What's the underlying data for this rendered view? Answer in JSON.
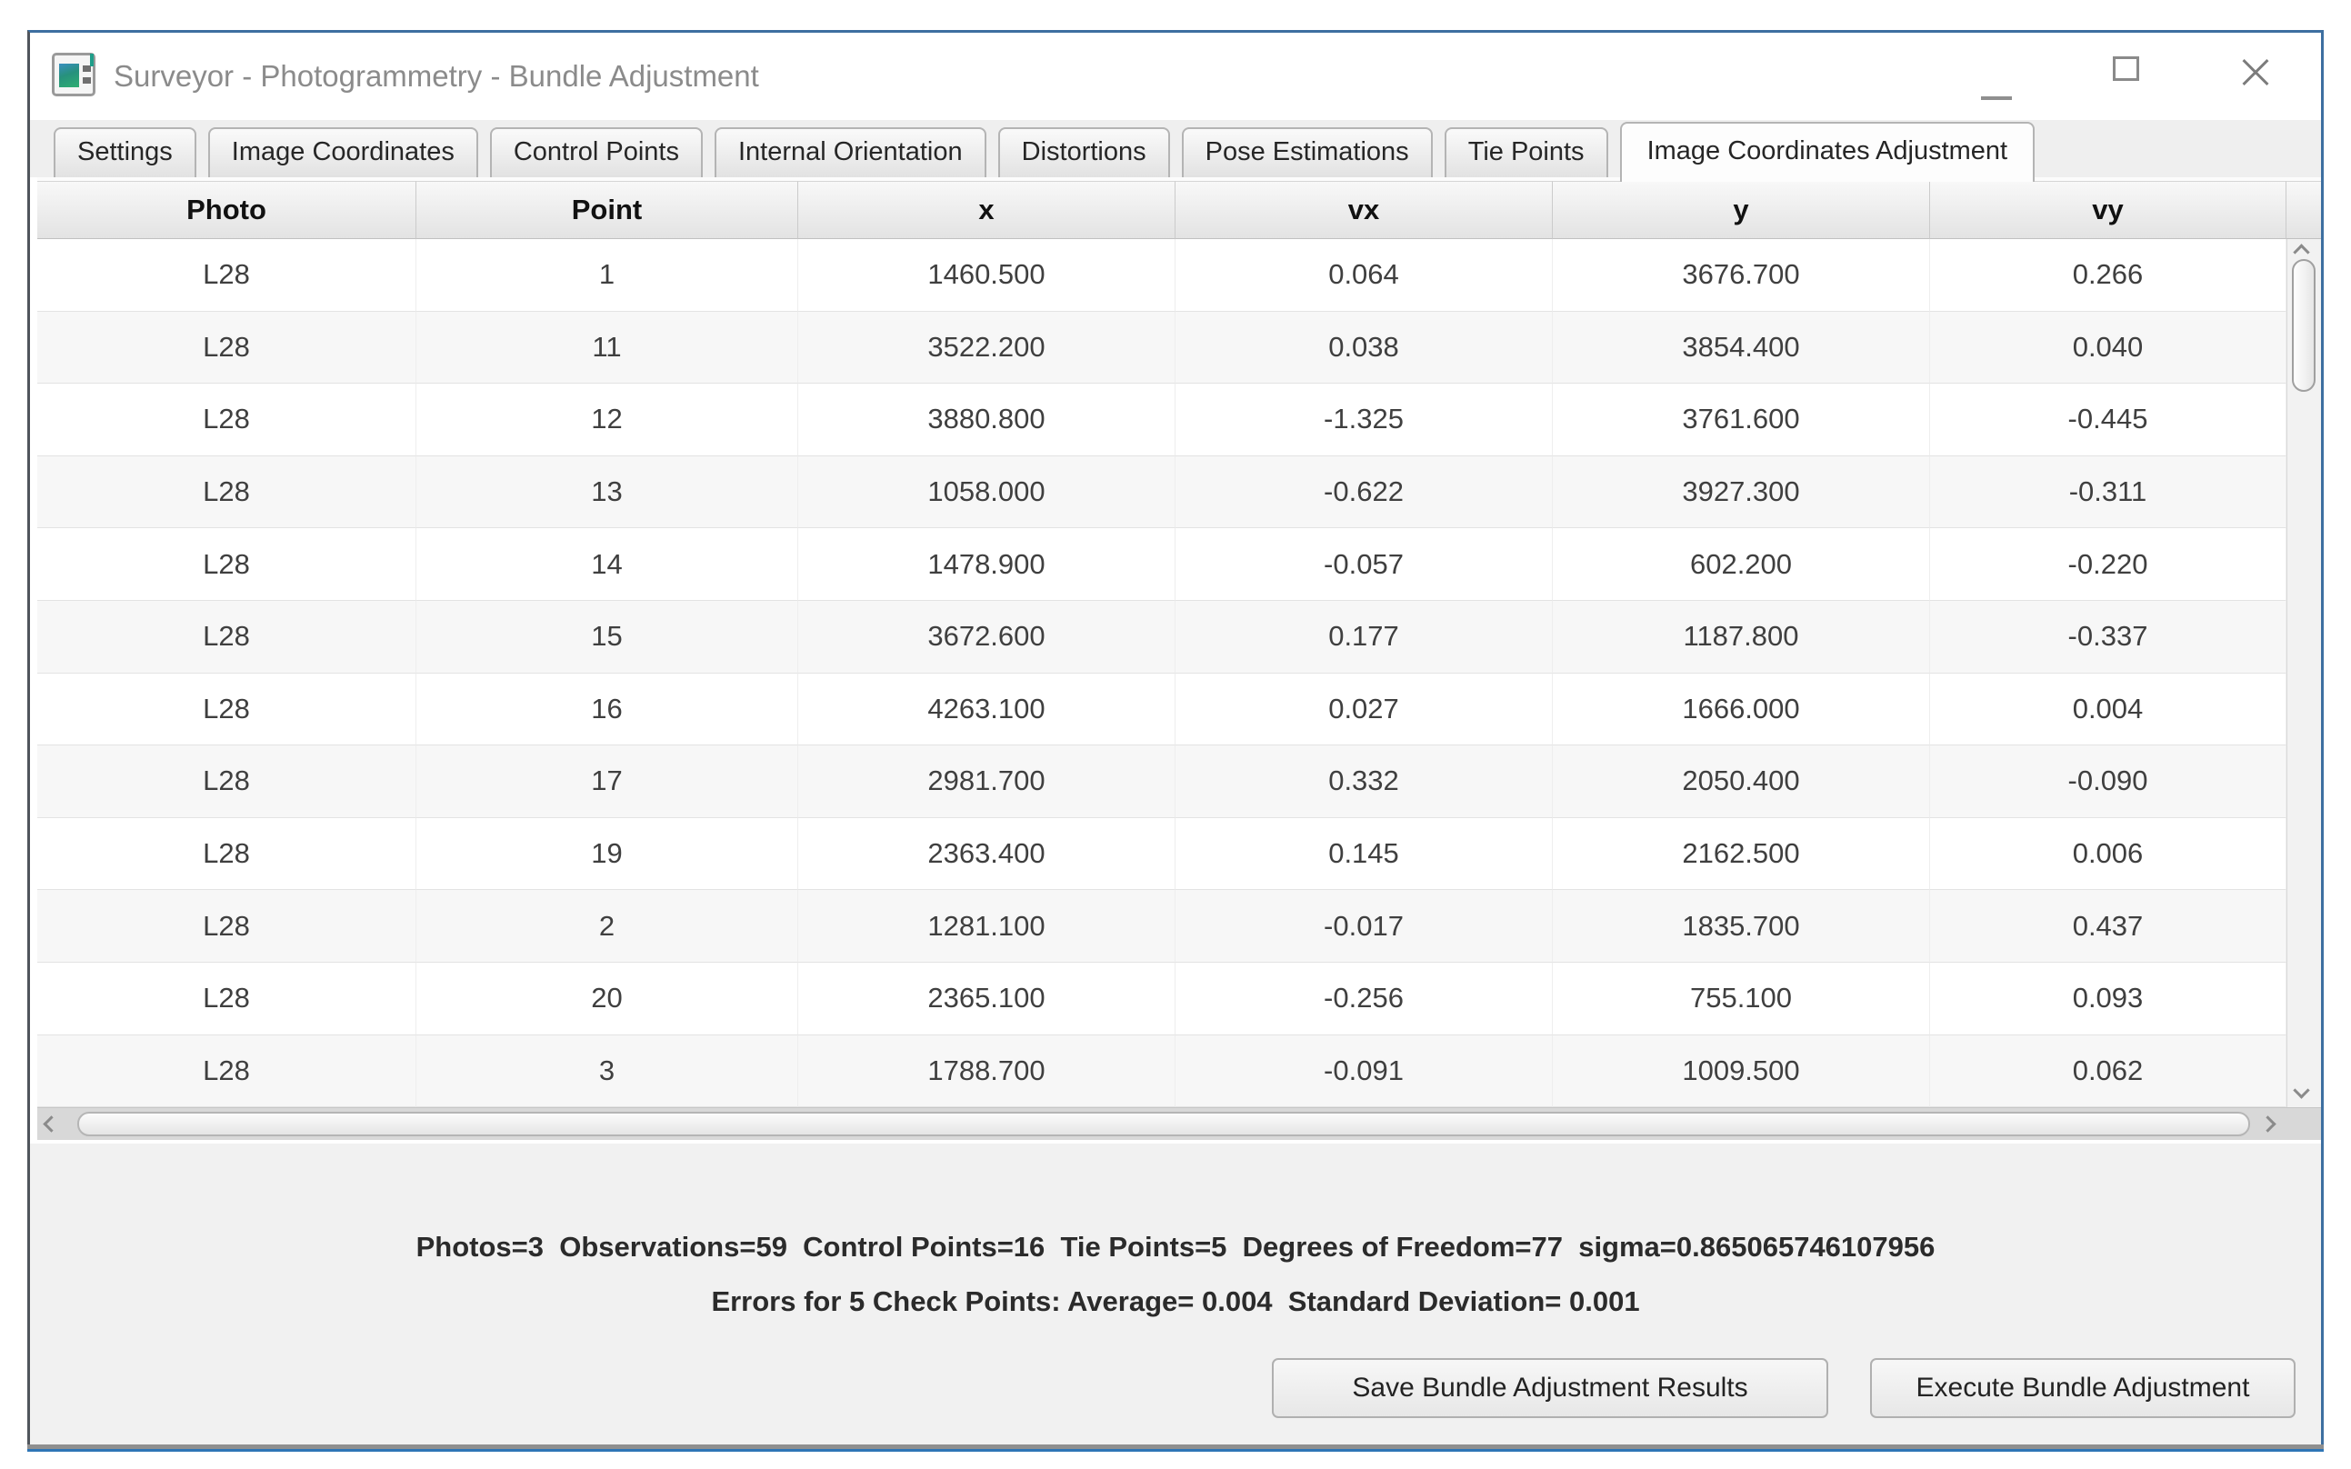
{
  "window": {
    "title": "Surveyor - Photogrammetry - Bundle Adjustment"
  },
  "tabs": [
    {
      "id": "settings",
      "label": "Settings",
      "active": false
    },
    {
      "id": "image-coordinates",
      "label": "Image Coordinates",
      "active": false
    },
    {
      "id": "control-points",
      "label": "Control Points",
      "active": false
    },
    {
      "id": "internal-orientation",
      "label": "Internal Orientation",
      "active": false
    },
    {
      "id": "distortions",
      "label": "Distortions",
      "active": false
    },
    {
      "id": "pose-estimations",
      "label": "Pose Estimations",
      "active": false
    },
    {
      "id": "tie-points",
      "label": "Tie Points",
      "active": false
    },
    {
      "id": "image-coordinates-adjustment",
      "label": "Image Coordinates Adjustment",
      "active": true
    }
  ],
  "table": {
    "columns": [
      "Photo",
      "Point",
      "x",
      "vx",
      "y",
      "vy"
    ],
    "rows": [
      [
        "L28",
        "1",
        "1460.500",
        "0.064",
        "3676.700",
        "0.266"
      ],
      [
        "L28",
        "11",
        "3522.200",
        "0.038",
        "3854.400",
        "0.040"
      ],
      [
        "L28",
        "12",
        "3880.800",
        "-1.325",
        "3761.600",
        "-0.445"
      ],
      [
        "L28",
        "13",
        "1058.000",
        "-0.622",
        "3927.300",
        "-0.311"
      ],
      [
        "L28",
        "14",
        "1478.900",
        "-0.057",
        "602.200",
        "-0.220"
      ],
      [
        "L28",
        "15",
        "3672.600",
        "0.177",
        "1187.800",
        "-0.337"
      ],
      [
        "L28",
        "16",
        "4263.100",
        "0.027",
        "1666.000",
        "0.004"
      ],
      [
        "L28",
        "17",
        "2981.700",
        "0.332",
        "2050.400",
        "-0.090"
      ],
      [
        "L28",
        "19",
        "2363.400",
        "0.145",
        "2162.500",
        "0.006"
      ],
      [
        "L28",
        "2",
        "1281.100",
        "-0.017",
        "1835.700",
        "0.437"
      ],
      [
        "L28",
        "20",
        "2365.100",
        "-0.256",
        "755.100",
        "0.093"
      ],
      [
        "L28",
        "3",
        "1788.700",
        "-0.091",
        "1009.500",
        "0.062"
      ]
    ]
  },
  "stats": {
    "line1": "Photos=3  Observations=59  Control Points=16  Tie Points=5  Degrees of Freedom=77  sigma=0.865065746107956",
    "line2": "Errors for 5 Check Points: Average= 0.004  Standard Deviation= 0.001"
  },
  "buttons": {
    "save": "Save Bundle Adjustment Results",
    "execute": "Execute Bundle Adjustment"
  },
  "colors": {
    "accent_border": "#3d6fa0",
    "accent_bottom": "#2e75b6",
    "title_text": "#8b8b8b",
    "row_alt": "#f7f7f7",
    "panel_bg": "#f1f1f1",
    "icon_teal": "#1f9e8a"
  }
}
